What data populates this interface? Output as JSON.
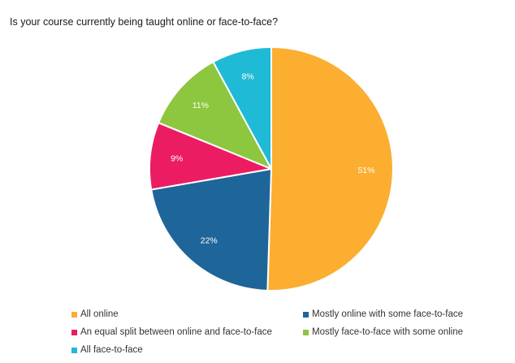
{
  "chart_data": {
    "type": "pie",
    "title": "Is your course currently being taught online or face-to-face?",
    "slices": [
      {
        "label": "All online",
        "value": 51,
        "display": "51%",
        "color": "#FBAE30"
      },
      {
        "label": "Mostly online with some face-to-face",
        "value": 22,
        "display": "22%",
        "color": "#1E6599"
      },
      {
        "label": "An equal split between online and face-to-face",
        "value": 9,
        "display": "9%",
        "color": "#EC1C63"
      },
      {
        "label": "Mostly face-to-face with some online",
        "value": 11,
        "display": "11%",
        "color": "#8DC63F"
      },
      {
        "label": "All face-to-face",
        "value": 8,
        "display": "8%",
        "color": "#1FBAD6"
      }
    ],
    "legend_position": "bottom",
    "start_angle": "top",
    "direction": "clockwise"
  }
}
